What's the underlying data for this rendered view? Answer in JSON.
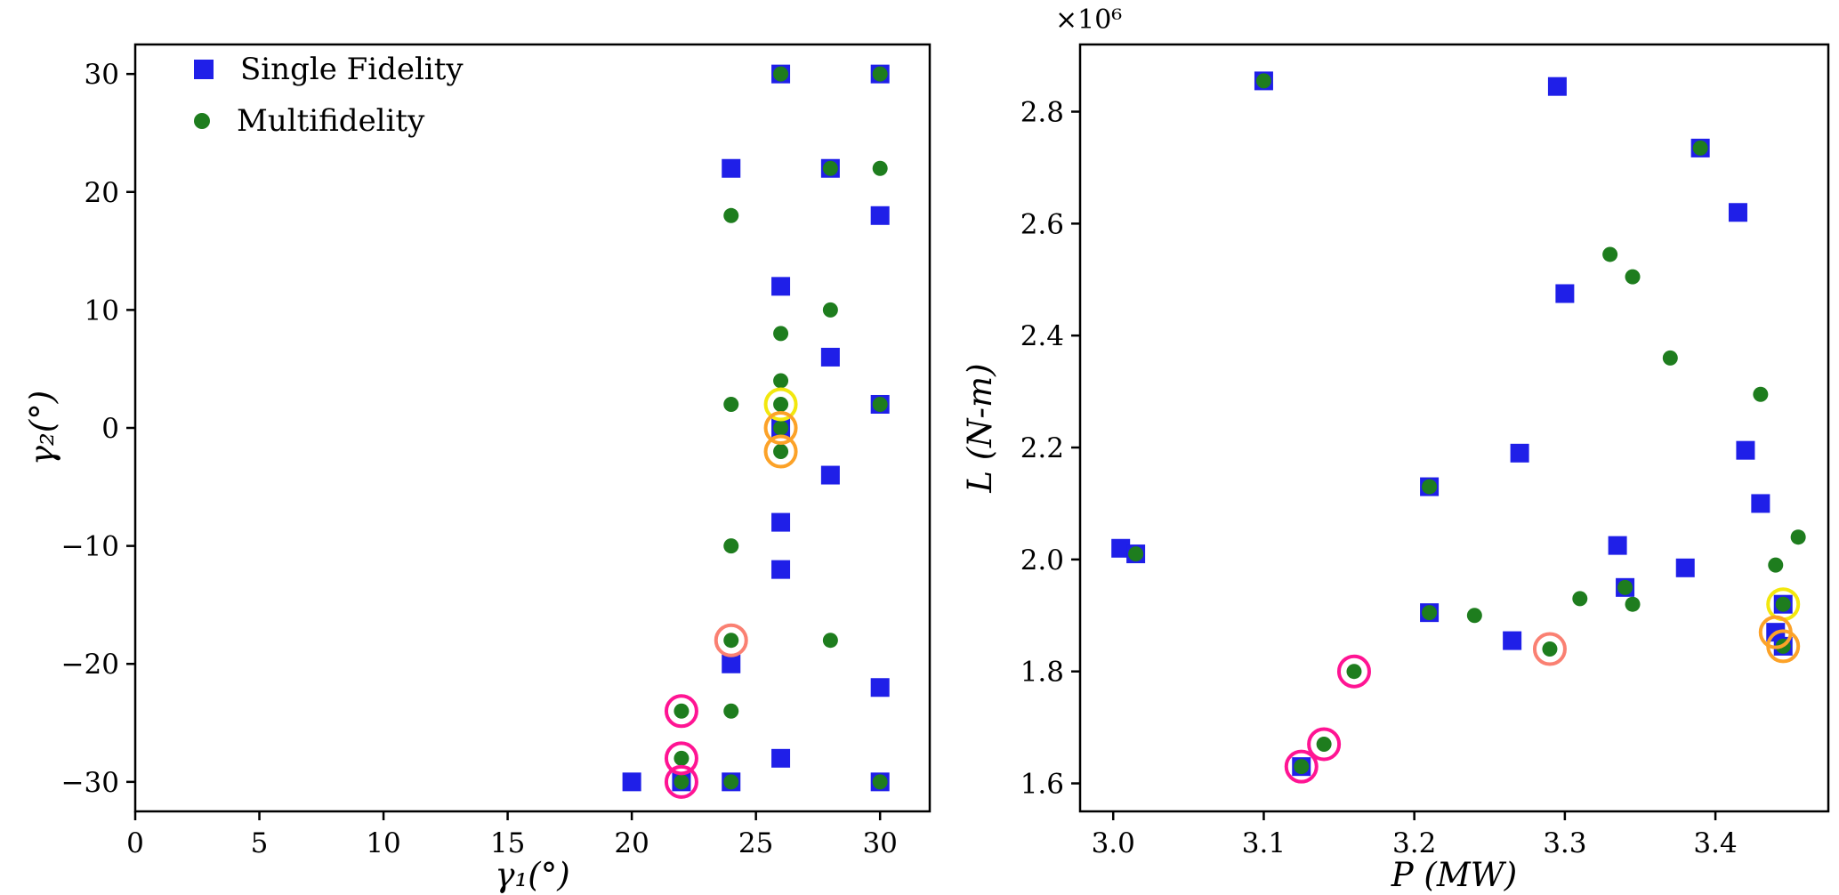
{
  "figure": {
    "background": "#ffffff",
    "text_color": "#000000"
  },
  "legend": {
    "position": "upper-left-of-left-plot"
  },
  "chart_data": [
    {
      "type": "scatter",
      "title": "",
      "xlabel": "γ₁(°)",
      "ylabel": "γ₂(°)",
      "xlim": [
        0,
        32
      ],
      "ylim": [
        -32.5,
        32.5
      ],
      "grid": false,
      "xticks": [
        0,
        5,
        10,
        15,
        20,
        25,
        30
      ],
      "xtick_labels": [
        "0",
        "5",
        "10",
        "15",
        "20",
        "25",
        "30"
      ],
      "yticks": [
        -30,
        -20,
        -10,
        0,
        10,
        20,
        30
      ],
      "ytick_labels": [
        "−30",
        "−20",
        "−10",
        "0",
        "10",
        "20",
        "30"
      ],
      "y_offset_label": "",
      "series": [
        {
          "name": "Single Fidelity",
          "marker": "square",
          "color": "#1f1fe8",
          "points": [
            [
              26,
              30
            ],
            [
              30,
              30
            ],
            [
              24,
              22
            ],
            [
              28,
              22
            ],
            [
              30,
              18
            ],
            [
              26,
              12
            ],
            [
              28,
              6
            ],
            [
              30,
              2
            ],
            [
              26,
              0
            ],
            [
              28,
              -4
            ],
            [
              26,
              -8
            ],
            [
              26,
              -12
            ],
            [
              24,
              -20
            ],
            [
              30,
              -22
            ],
            [
              26,
              -28
            ],
            [
              20,
              -30
            ],
            [
              22,
              -30
            ],
            [
              24,
              -30
            ],
            [
              30,
              -30
            ]
          ]
        },
        {
          "name": "Multifidelity",
          "marker": "circle",
          "color": "#1e7d1e",
          "points": [
            [
              26,
              30
            ],
            [
              30,
              30
            ],
            [
              28,
              22
            ],
            [
              30,
              22
            ],
            [
              24,
              18
            ],
            [
              28,
              10
            ],
            [
              26,
              8
            ],
            [
              26,
              4
            ],
            [
              24,
              2
            ],
            [
              30,
              2
            ],
            [
              26,
              2
            ],
            [
              26,
              0
            ],
            [
              26,
              -2
            ],
            [
              24,
              -10
            ],
            [
              28,
              -18
            ],
            [
              24,
              -18
            ],
            [
              24,
              -24
            ],
            [
              22,
              -24
            ],
            [
              22,
              -28
            ],
            [
              22,
              -30
            ],
            [
              24,
              -30
            ],
            [
              30,
              -30
            ]
          ]
        }
      ],
      "highlights": [
        {
          "name": "yellow-ring",
          "color": "#f2e70e",
          "points": [
            [
              26,
              2
            ]
          ]
        },
        {
          "name": "orange-ring",
          "color": "#fca228",
          "points": [
            [
              26,
              0
            ],
            [
              26,
              -2
            ]
          ]
        },
        {
          "name": "salmon-ring",
          "color": "#fa8072",
          "points": [
            [
              24,
              -18
            ]
          ]
        },
        {
          "name": "magenta-ring",
          "color": "#ff1493",
          "points": [
            [
              22,
              -24
            ],
            [
              22,
              -28
            ],
            [
              22,
              -30
            ]
          ]
        }
      ]
    },
    {
      "type": "scatter",
      "title": "",
      "xlabel": "P (MW)",
      "ylabel": "L (N-m)",
      "xlim": [
        2.978,
        3.475
      ],
      "ylim": [
        1.55,
        2.92
      ],
      "grid": false,
      "xticks": [
        3.0,
        3.1,
        3.2,
        3.3,
        3.4
      ],
      "xtick_labels": [
        "3.0",
        "3.1",
        "3.2",
        "3.3",
        "3.4"
      ],
      "yticks": [
        1.6,
        1.8,
        2.0,
        2.2,
        2.4,
        2.6,
        2.8
      ],
      "ytick_labels": [
        "1.6",
        "1.8",
        "2.0",
        "2.2",
        "2.4",
        "2.6",
        "2.8"
      ],
      "y_offset_label": "×10⁶",
      "y_unit_multiplier": 1000000,
      "series": [
        {
          "name": "Single Fidelity",
          "marker": "square",
          "color": "#1f1fe8",
          "points": [
            [
              3.005,
              2.02
            ],
            [
              3.015,
              2.01
            ],
            [
              3.1,
              2.855
            ],
            [
              3.295,
              2.845
            ],
            [
              3.39,
              2.735
            ],
            [
              3.415,
              2.62
            ],
            [
              3.3,
              2.475
            ],
            [
              3.27,
              2.19
            ],
            [
              3.42,
              2.195
            ],
            [
              3.43,
              2.1
            ],
            [
              3.21,
              2.13
            ],
            [
              3.335,
              2.025
            ],
            [
              3.34,
              1.95
            ],
            [
              3.38,
              1.985
            ],
            [
              3.21,
              1.905
            ],
            [
              3.265,
              1.855
            ],
            [
              3.445,
              1.92
            ],
            [
              3.44,
              1.87
            ],
            [
              3.445,
              1.845
            ],
            [
              3.125,
              1.63
            ]
          ]
        },
        {
          "name": "Multifidelity",
          "marker": "circle",
          "color": "#1e7d1e",
          "points": [
            [
              3.015,
              2.01
            ],
            [
              3.1,
              2.855
            ],
            [
              3.39,
              2.735
            ],
            [
              3.33,
              2.545
            ],
            [
              3.345,
              2.505
            ],
            [
              3.37,
              2.36
            ],
            [
              3.43,
              2.295
            ],
            [
              3.21,
              2.13
            ],
            [
              3.24,
              1.9
            ],
            [
              3.31,
              1.93
            ],
            [
              3.345,
              1.92
            ],
            [
              3.29,
              1.84
            ],
            [
              3.16,
              1.8
            ],
            [
              3.14,
              1.67
            ],
            [
              3.125,
              1.63
            ],
            [
              3.44,
              1.99
            ],
            [
              3.455,
              2.04
            ],
            [
              3.445,
              1.92
            ],
            [
              3.445,
              1.845
            ],
            [
              3.21,
              1.905
            ],
            [
              3.34,
              1.95
            ]
          ]
        }
      ],
      "highlights": [
        {
          "name": "yellow-ring",
          "color": "#f2e70e",
          "points": [
            [
              3.445,
              1.92
            ]
          ]
        },
        {
          "name": "orange-ring",
          "color": "#fca228",
          "points": [
            [
              3.44,
              1.87
            ],
            [
              3.445,
              1.845
            ]
          ]
        },
        {
          "name": "salmon-ring",
          "color": "#fa8072",
          "points": [
            [
              3.29,
              1.84
            ]
          ]
        },
        {
          "name": "magenta-ring",
          "color": "#ff1493",
          "points": [
            [
              3.16,
              1.8
            ],
            [
              3.14,
              1.67
            ],
            [
              3.125,
              1.63
            ]
          ]
        }
      ]
    }
  ]
}
